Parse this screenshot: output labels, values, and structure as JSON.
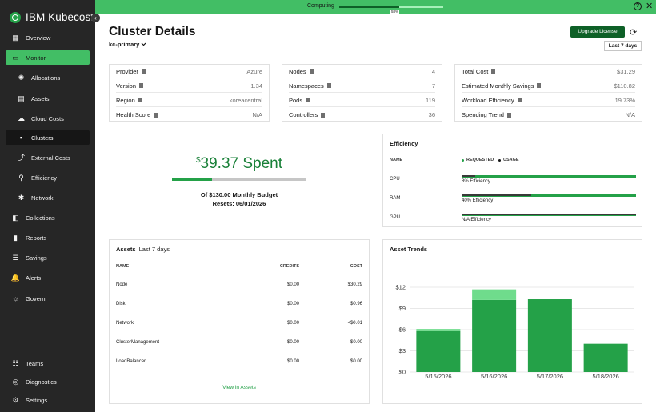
{
  "brand": {
    "name": "IBM Kubecost"
  },
  "sidebar": {
    "items": [
      {
        "label": "Overview",
        "icon": "grid-icon"
      },
      {
        "label": "Monitor",
        "icon": "monitor-icon"
      },
      {
        "label": "Allocations",
        "icon": "allocations-icon"
      },
      {
        "label": "Assets",
        "icon": "assets-icon"
      },
      {
        "label": "Cloud Costs",
        "icon": "cloud-icon"
      },
      {
        "label": "Clusters",
        "icon": "clusters-icon"
      },
      {
        "label": "External Costs",
        "icon": "external-icon"
      },
      {
        "label": "Efficiency",
        "icon": "efficiency-icon"
      },
      {
        "label": "Network",
        "icon": "network-icon"
      },
      {
        "label": "Collections",
        "icon": "collections-icon"
      },
      {
        "label": "Reports",
        "icon": "reports-icon"
      },
      {
        "label": "Savings",
        "icon": "savings-icon"
      },
      {
        "label": "Alerts",
        "icon": "bell-icon"
      },
      {
        "label": "Govern",
        "icon": "govern-icon"
      }
    ],
    "bottom": [
      {
        "label": "Teams",
        "icon": "teams-icon"
      },
      {
        "label": "Diagnostics",
        "icon": "diagnostics-icon"
      },
      {
        "label": "Settings",
        "icon": "gear-icon"
      }
    ]
  },
  "topbar": {
    "status": "Computing",
    "progress_percent": 58,
    "progress_label": "58%"
  },
  "header": {
    "title": "Cluster Details",
    "cluster": "kc-primary",
    "upgrade_label": "Upgrade License",
    "range_label": "Last 7 days"
  },
  "cluster_info": [
    {
      "label": "Provider",
      "value": "Azure"
    },
    {
      "label": "Version",
      "value": "1.34"
    },
    {
      "label": "Region",
      "value": "koreacentral"
    },
    {
      "label": "Health Score",
      "value": "N/A"
    }
  ],
  "counts": [
    {
      "label": "Nodes",
      "value": "4"
    },
    {
      "label": "Namespaces",
      "value": "7"
    },
    {
      "label": "Pods",
      "value": "119"
    },
    {
      "label": "Controllers",
      "value": "36"
    }
  ],
  "costs": [
    {
      "label": "Total Cost",
      "value": "$31.29"
    },
    {
      "label": "Estimated Monthly Savings",
      "value": "$110.82"
    },
    {
      "label": "Workload Efficiency",
      "value": "19.73%"
    },
    {
      "label": "Spending Trend",
      "value": "N/A"
    }
  ],
  "spend": {
    "currency": "$",
    "amount": "39.37 Spent",
    "budget_fraction": 0.3,
    "budget_label": "Of $130.00 Monthly Budget",
    "reset_label": "Resets: 06/01/2026"
  },
  "efficiency": {
    "title": "Efficiency",
    "name_header": "NAME",
    "legend_requested": "REQUESTED",
    "legend_usage": "USAGE",
    "rows": [
      {
        "name": "CPU",
        "label": "8% Efficiency",
        "usage_fraction": 0.08
      },
      {
        "name": "RAM",
        "label": "40% Efficiency",
        "usage_fraction": 0.4
      },
      {
        "name": "GPU",
        "label": "N/A Efficiency",
        "usage_fraction": 1.0
      }
    ]
  },
  "assets": {
    "title": "Assets",
    "subtitle": "Last 7 days",
    "headers": [
      "NAME",
      "CREDITS",
      "COST"
    ],
    "rows": [
      {
        "name": "Node",
        "credits": "$0.00",
        "cost": "$30.29"
      },
      {
        "name": "Disk",
        "credits": "$0.00",
        "cost": "$0.96"
      },
      {
        "name": "Network",
        "credits": "$0.00",
        "cost": "<$0.01"
      },
      {
        "name": "ClusterManagement",
        "credits": "$0.00",
        "cost": "$0.00"
      },
      {
        "name": "LoadBalancer",
        "credits": "$0.00",
        "cost": "$0.00"
      }
    ],
    "link": "View in Assets"
  },
  "trends": {
    "title": "Asset Trends"
  },
  "colors": {
    "accent": "#42be65",
    "dark_green": "#0e6027",
    "bar": "#24a148",
    "bar_light": "#6fdc8c",
    "sidebar": "#262626"
  },
  "chart_data": {
    "type": "bar",
    "categories": [
      "5/15/2026",
      "5/16/2026",
      "5/17/2026",
      "5/18/2026"
    ],
    "series": [
      {
        "values": [
          5.8,
          10.2,
          10.3,
          4.0
        ]
      },
      {
        "values": [
          0.3,
          1.5,
          0,
          0
        ]
      }
    ],
    "stacked": true,
    "yticks": [
      "$0",
      "$3",
      "$6",
      "$9",
      "$12"
    ],
    "ylim": [
      0,
      12
    ],
    "grid": true
  }
}
